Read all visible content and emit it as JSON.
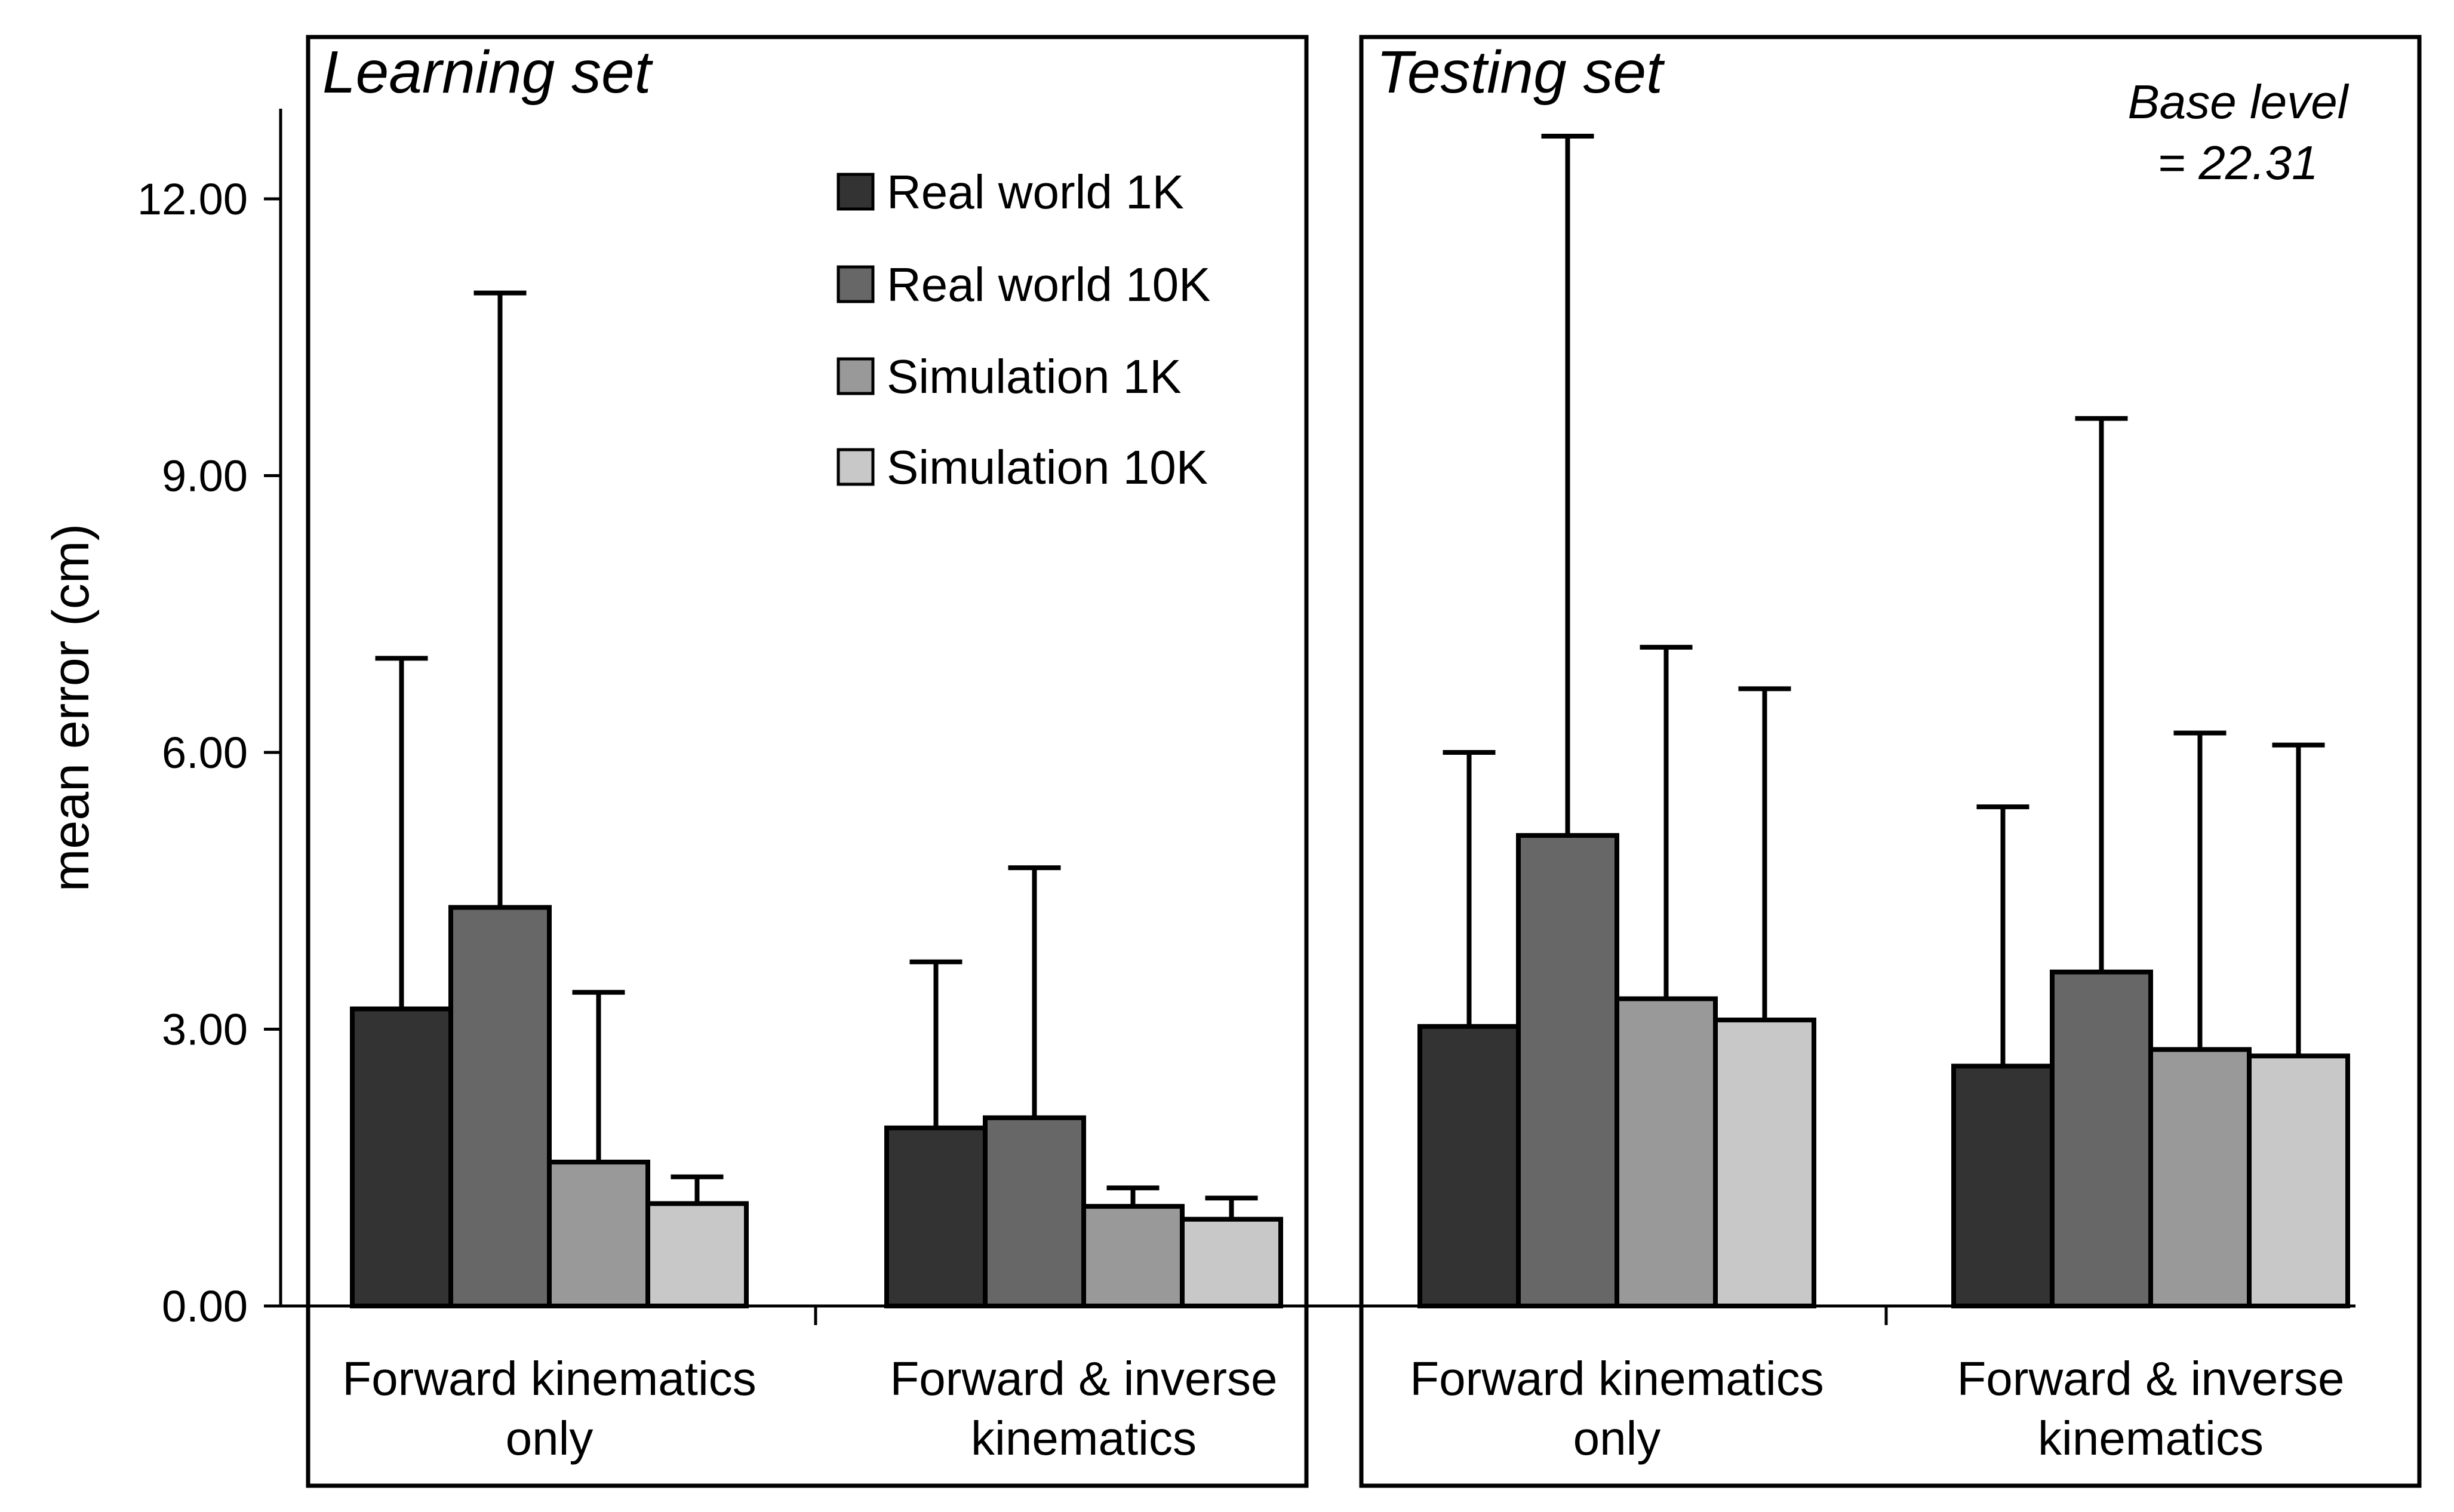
{
  "chart_data": {
    "type": "bar",
    "ylabel": "mean error (cm)",
    "ylim": [
      0,
      13.0
    ],
    "yticks": [
      0,
      3,
      6,
      9,
      12
    ],
    "ytick_labels": [
      "0.00",
      "3.00",
      "6.00",
      "9.00",
      "12.00"
    ],
    "legend": {
      "placement": "top-right of left panel",
      "entries": [
        "Real world 1K",
        "Real world 10K",
        "Simulation 1K",
        "Simulation 10K"
      ]
    },
    "series_colors": [
      "#333333",
      "#676767",
      "#999999",
      "#c8c8c8"
    ],
    "grid": false,
    "error_bars": "upper only",
    "annotation": [
      "Base level",
      "= 22.31"
    ],
    "panels": [
      {
        "title": "Learning set",
        "categories": [
          [
            "Forward kinematics",
            "only"
          ],
          [
            "Forward & inverse",
            "kinematics"
          ]
        ],
        "series": [
          {
            "name": "Real world 1K",
            "values": [
              3.22,
              1.93
            ],
            "err_upper": [
              7.02,
              3.73
            ]
          },
          {
            "name": "Real world 10K",
            "values": [
              4.32,
              2.04
            ],
            "err_upper": [
              10.98,
              4.75
            ]
          },
          {
            "name": "Simulation 1K",
            "values": [
              1.56,
              1.08
            ],
            "err_upper": [
              3.4,
              1.28
            ]
          },
          {
            "name": "Simulation 10K",
            "values": [
              1.11,
              0.94
            ],
            "err_upper": [
              1.4,
              1.17
            ]
          }
        ]
      },
      {
        "title": "Testing set",
        "categories": [
          [
            "Forward kinematics",
            "only"
          ],
          [
            "Forward & inverse",
            "kinematics"
          ]
        ],
        "series": [
          {
            "name": "Real world 1K",
            "values": [
              3.03,
              2.6
            ],
            "err_upper": [
              6.0,
              5.41
            ]
          },
          {
            "name": "Real world 10K",
            "values": [
              5.1,
              3.62
            ],
            "err_upper": [
              12.68,
              9.62
            ]
          },
          {
            "name": "Simulation 1K",
            "values": [
              3.33,
              2.78
            ],
            "err_upper": [
              7.14,
              6.21
            ]
          },
          {
            "name": "Simulation 10K",
            "values": [
              3.1,
              2.71
            ],
            "err_upper": [
              6.69,
              6.08
            ]
          }
        ]
      }
    ]
  }
}
